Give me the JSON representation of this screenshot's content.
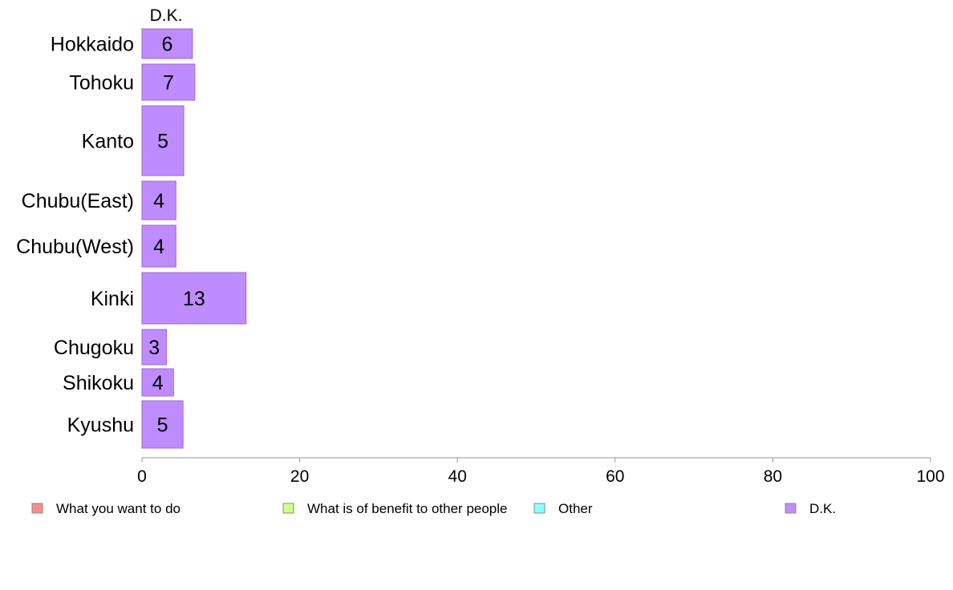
{
  "chart_data": {
    "type": "bar",
    "orientation": "horizontal",
    "stacked": true,
    "categories": [
      "Hokkaido",
      "Tohoku",
      "Kanto",
      "Chubu(East)",
      "Chubu(West)",
      "Kinki",
      "Chugoku",
      "Shikoku",
      "Kyushu"
    ],
    "series": [
      {
        "name": "What you want to do",
        "color": "#ff8c8c",
        "values": [
          0,
          0,
          0,
          0,
          0,
          0,
          0,
          0,
          0
        ]
      },
      {
        "name": "What is of benefit to other people",
        "color": "#ccff8c",
        "values": [
          0,
          0,
          0,
          0,
          0,
          0,
          0,
          0,
          0
        ]
      },
      {
        "name": "Other",
        "color": "#8cffff",
        "values": [
          0,
          0,
          0,
          0,
          0,
          0,
          0,
          0,
          0
        ]
      },
      {
        "name": "D.K.",
        "color": "#bf8cff",
        "values": [
          6.4,
          6.7,
          5.3,
          4.3,
          4.3,
          13.2,
          3.1,
          4.0,
          5.2
        ]
      }
    ],
    "data_labels": [
      "6",
      "7",
      "5",
      "4",
      "4",
      "13",
      "3",
      "4",
      "5"
    ],
    "top_label": "D.K.",
    "xlim": [
      0,
      100
    ],
    "xticks": [
      "0",
      "20",
      "40",
      "60",
      "80",
      "100"
    ],
    "legend_position": "bottom",
    "grid": false
  }
}
